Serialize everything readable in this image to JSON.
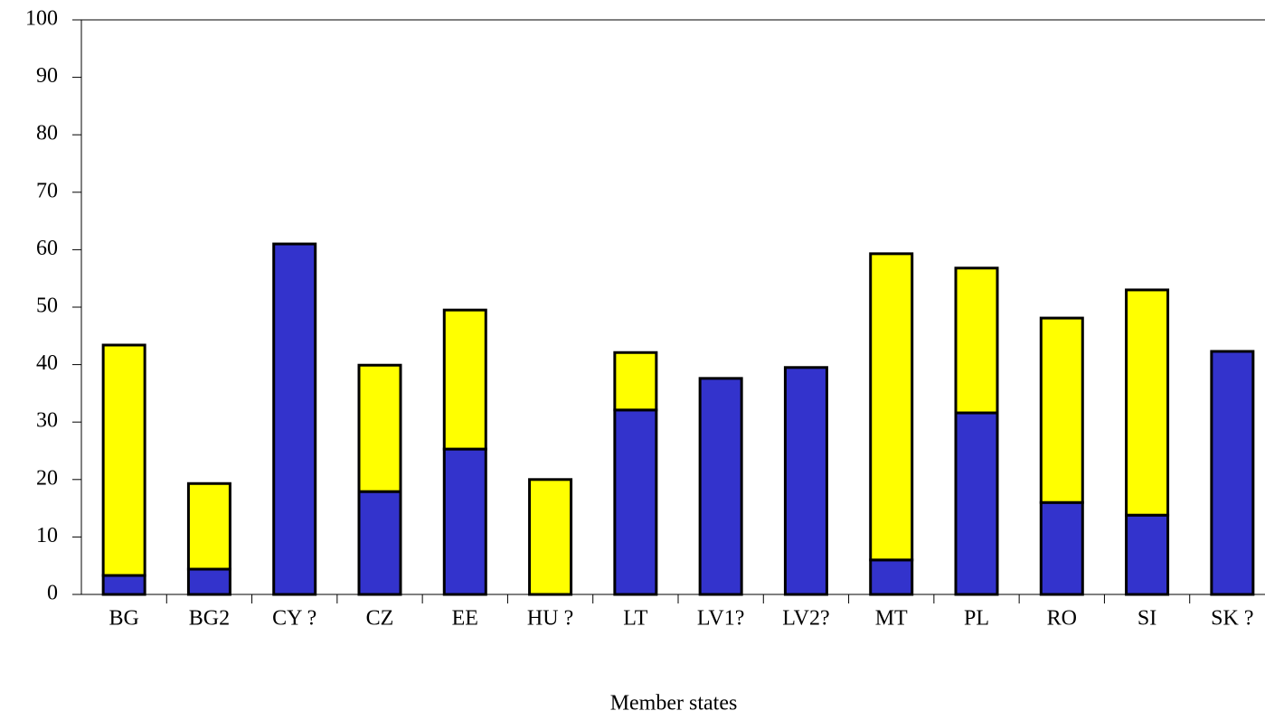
{
  "chart_data": {
    "type": "stacked_bar",
    "x_label": "Member states",
    "categories": [
      "BG",
      "BG2",
      "CY ?",
      "CZ",
      "EE",
      "HU ?",
      "LT",
      "LV1?",
      "LV2?",
      "MT",
      "PL",
      "RO",
      "SI",
      "SK ?"
    ],
    "series": [
      {
        "color": "#3333cc",
        "values": [
          3.3,
          4.4,
          61,
          17.9,
          25.3,
          0,
          32.1,
          37.6,
          39.5,
          6,
          31.6,
          16,
          13.8,
          42.3
        ]
      },
      {
        "color": "#ffff00",
        "values": [
          40.1,
          14.9,
          0,
          22,
          24.2,
          20,
          10,
          0,
          0,
          53.3,
          25.2,
          32.1,
          39.2,
          0
        ]
      }
    ],
    "ylim": [
      0,
      100
    ],
    "yticks": [
      0,
      10,
      20,
      30,
      40,
      50,
      60,
      70,
      80,
      90,
      100
    ]
  }
}
